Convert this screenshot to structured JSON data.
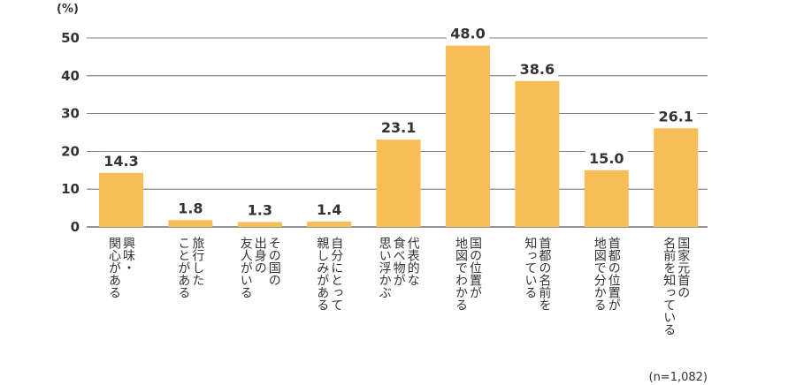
{
  "chart_data": {
    "type": "bar",
    "unit_label": "(%)",
    "ylim": [
      0,
      50
    ],
    "yticks": [
      "0",
      "10",
      "20",
      "30",
      "40",
      "50"
    ],
    "grid": true,
    "bar_color": "#F7BE58",
    "categories": [
      [
        "興味・",
        "関心がある"
      ],
      [
        "旅行した",
        "ことがある"
      ],
      [
        "その国の",
        "出身の",
        "友人がいる"
      ],
      [
        "自分にとって",
        "親しみがある"
      ],
      [
        "代表的な",
        "食べ物が",
        "思い浮かぶ"
      ],
      [
        "国の位置が",
        "地図でわかる"
      ],
      [
        "首都の名前を",
        "知っている"
      ],
      [
        "首都の位置が",
        "地図で分かる"
      ],
      [
        "国家元首の",
        "名前を知っている"
      ]
    ],
    "values": [
      14.3,
      1.8,
      1.3,
      1.4,
      23.1,
      48.0,
      38.6,
      15.0,
      26.1
    ],
    "value_labels": [
      "14.3",
      "1.8",
      "1.3",
      "1.4",
      "23.1",
      "48.0",
      "38.6",
      "15.0",
      "26.1"
    ],
    "note": "(n=1,082)"
  }
}
